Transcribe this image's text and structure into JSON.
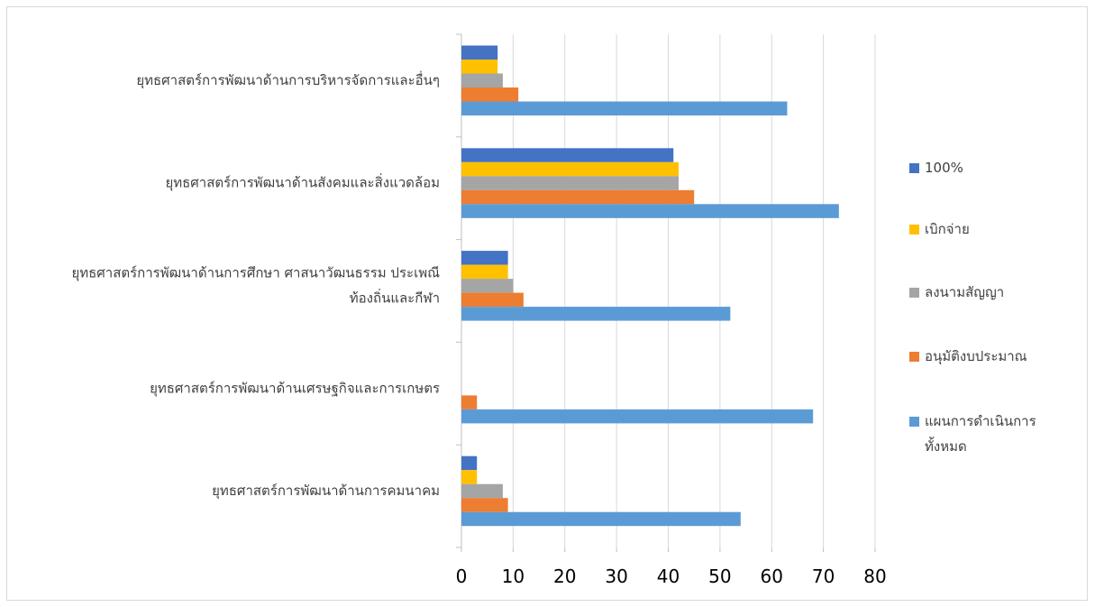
{
  "chart_data": {
    "type": "bar",
    "orientation": "horizontal",
    "categories": [
      [
        "ยุทธศาสตร์การพัฒนาด้านการบริหารจัดการและอื่นๆ"
      ],
      [
        "ยุทธศาสตร์การพัฒนาด้านสังคมและสิ่งแวดล้อม"
      ],
      [
        "ยุทธศาสตร์การพัฒนาด้านการศึกษา ศาสนาวัฒนธรรม ประเพณี",
        "ท้องถิ่นและกีฬา"
      ],
      [
        "ยุทธศาสตร์การพัฒนาด้านเศรษฐกิจและการเกษตร"
      ],
      [
        "ยุทธศาสตร์การพัฒนาด้านการคมนาคม"
      ]
    ],
    "series": [
      {
        "name": "100%",
        "color": "#4472c4",
        "values": [
          7,
          41,
          9,
          0,
          3
        ]
      },
      {
        "name": "เบิกจ่าย",
        "color": "#ffc000",
        "values": [
          7,
          42,
          9,
          0,
          3
        ]
      },
      {
        "name": "ลงนามสัญญา",
        "color": "#a5a5a5",
        "values": [
          8,
          42,
          10,
          0,
          8
        ]
      },
      {
        "name": "อนุมัติงบประมาณ",
        "color": "#ed7d31",
        "values": [
          11,
          45,
          12,
          3,
          9
        ]
      },
      {
        "name": "แผนการดำเนินการทั้งหมด",
        "color": "#5b9bd5",
        "values": [
          63,
          73,
          52,
          68,
          54
        ]
      }
    ],
    "legend_lines": [
      [
        "100%"
      ],
      [
        "เบิกจ่าย"
      ],
      [
        "ลงนามสัญญา"
      ],
      [
        "อนุมัติงบประมาณ"
      ],
      [
        "แผนการดำเนินการ",
        "ทั้งหมด"
      ]
    ],
    "x_ticks": [
      "0",
      "10",
      "20",
      "30",
      "40",
      "50",
      "60",
      "70",
      "80"
    ],
    "xlim": [
      0,
      80
    ],
    "grid": true,
    "legend_position": "right",
    "title": "",
    "xlabel": "",
    "ylabel": ""
  }
}
